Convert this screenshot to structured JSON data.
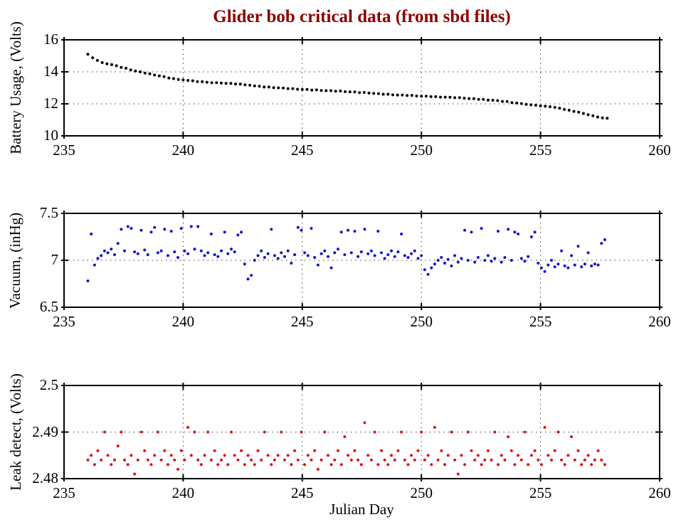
{
  "title": {
    "text": "Glider bob critical data (from sbd files)",
    "color": "#8B0000"
  },
  "xlabel": "Julian Day",
  "background_color": "#FFFFFF",
  "axis_color": "#000000",
  "grid_color": "#3a3a3a",
  "grid_style": "dotted",
  "chart_data": [
    {
      "type": "scatter",
      "name": "battery-usage",
      "ylabel": "Battery Usage, (Volts)",
      "marker_color": "#000000",
      "xlim": [
        235,
        260
      ],
      "ylim": [
        10,
        16
      ],
      "xticks": [
        235,
        240,
        245,
        250,
        255,
        260
      ],
      "xtick_labels": [
        "235",
        "240",
        "245",
        "250",
        "255",
        "260"
      ],
      "yticks": [
        10,
        12,
        14,
        16
      ],
      "ytick_labels": [
        "10",
        "12",
        "14",
        "16"
      ],
      "grid_x": [
        240,
        245,
        250,
        255
      ],
      "grid_y": [
        12,
        14
      ],
      "x_start": 236.0,
      "x_step": 0.2,
      "y": [
        15.1,
        14.88,
        14.71,
        14.58,
        14.5,
        14.45,
        14.38,
        14.28,
        14.22,
        14.12,
        14.05,
        14.0,
        13.92,
        13.88,
        13.8,
        13.75,
        13.7,
        13.62,
        13.58,
        13.52,
        13.5,
        13.46,
        13.44,
        13.39,
        13.38,
        13.35,
        13.32,
        13.32,
        13.3,
        13.28,
        13.28,
        13.24,
        13.23,
        13.19,
        13.16,
        13.12,
        13.1,
        13.05,
        13.05,
        13.01,
        13.0,
        12.99,
        12.95,
        12.95,
        12.91,
        12.9,
        12.9,
        12.86,
        12.87,
        12.83,
        12.82,
        12.82,
        12.79,
        12.8,
        12.76,
        12.75,
        12.74,
        12.7,
        12.71,
        12.67,
        12.65,
        12.64,
        12.6,
        12.6,
        12.56,
        12.55,
        12.55,
        12.52,
        12.53,
        12.49,
        12.48,
        12.48,
        12.45,
        12.45,
        12.42,
        12.42,
        12.41,
        12.38,
        12.39,
        12.35,
        12.33,
        12.32,
        12.28,
        12.28,
        12.23,
        12.22,
        12.2,
        12.15,
        12.14,
        12.08,
        12.05,
        12.02,
        11.97,
        11.94,
        11.91,
        11.87,
        11.85,
        11.82,
        11.78,
        11.73,
        11.65,
        11.6,
        11.53,
        11.48,
        11.4,
        11.32,
        11.26,
        11.18,
        11.12,
        11.1
      ]
    },
    {
      "type": "scatter",
      "name": "vacuum",
      "ylabel": "Vacuum, (inHg)",
      "marker_color": "#1414CC",
      "xlim": [
        235,
        260
      ],
      "ylim": [
        6.5,
        7.5
      ],
      "xticks": [
        235,
        240,
        245,
        250,
        255,
        260
      ],
      "xtick_labels": [
        "235",
        "240",
        "245",
        "250",
        "255",
        "260"
      ],
      "yticks": [
        6.5,
        7,
        7.5
      ],
      "ytick_labels": [
        "6.5",
        "7",
        "7.5"
      ],
      "grid_x": [
        240,
        245,
        250,
        255
      ],
      "grid_y": [
        7
      ],
      "x_start": 236.0,
      "x_step": 0.14,
      "y": [
        6.78,
        7.28,
        6.95,
        7.02,
        7.05,
        7.1,
        7.08,
        7.12,
        7.06,
        7.18,
        7.33,
        7.1,
        7.36,
        7.34,
        7.09,
        7.07,
        7.32,
        7.11,
        7.06,
        7.3,
        7.35,
        7.08,
        7.1,
        7.33,
        7.05,
        7.31,
        7.09,
        7.03,
        7.34,
        7.1,
        7.07,
        7.36,
        7.12,
        7.36,
        7.1,
        7.05,
        7.08,
        7.28,
        7.06,
        7.04,
        7.1,
        7.3,
        7.07,
        7.12,
        7.09,
        7.27,
        7.3,
        6.96,
        6.8,
        6.84,
        7.0,
        7.05,
        7.1,
        7.03,
        7.07,
        7.33,
        7.05,
        7.02,
        7.08,
        7.04,
        7.1,
        6.97,
        7.06,
        7.35,
        7.32,
        7.08,
        7.05,
        7.34,
        7.03,
        6.95,
        7.07,
        7.1,
        7.04,
        6.92,
        7.08,
        7.12,
        7.3,
        7.06,
        7.32,
        7.08,
        7.31,
        7.04,
        7.09,
        7.33,
        7.07,
        7.1,
        7.05,
        7.31,
        7.08,
        7.02,
        7.06,
        7.1,
        7.04,
        7.09,
        7.28,
        7.05,
        7.03,
        7.07,
        7.1,
        7.02,
        7.05,
        6.9,
        6.85,
        6.92,
        6.96,
        7.0,
        7.03,
        6.97,
        7.01,
        6.94,
        7.05,
        6.98,
        7.02,
        7.32,
        7.0,
        7.3,
        6.98,
        7.03,
        7.34,
        7.0,
        7.05,
        6.99,
        7.02,
        7.31,
        6.98,
        7.03,
        7.33,
        7.0,
        7.3,
        7.28,
        7.02,
        6.99,
        7.04,
        7.25,
        7.3,
        6.97,
        6.92,
        6.88,
        6.95,
        7.0,
        6.93,
        6.96,
        7.1,
        6.94,
        6.92,
        7.05,
        6.95,
        7.15,
        6.93,
        6.96,
        7.08,
        6.94,
        6.96,
        6.95,
        7.18,
        7.22
      ]
    },
    {
      "type": "scatter",
      "name": "leak-detect",
      "ylabel": "Leak detect, (Volts)",
      "marker_color": "#DC1414",
      "xlim": [
        235,
        260
      ],
      "ylim": [
        2.48,
        2.5
      ],
      "xticks": [
        235,
        240,
        245,
        250,
        255,
        260
      ],
      "xtick_labels": [
        "235",
        "240",
        "245",
        "250",
        "255",
        "260"
      ],
      "yticks": [
        2.48,
        2.49,
        2.5
      ],
      "ytick_labels": [
        "2.48",
        "2.49",
        "2.5"
      ],
      "grid_x": [
        240,
        245,
        250,
        255
      ],
      "grid_y": [
        2.49
      ],
      "x_start": 236.0,
      "x_step": 0.14,
      "y": [
        2.484,
        2.485,
        2.483,
        2.486,
        2.484,
        2.49,
        2.485,
        2.483,
        2.484,
        2.487,
        2.49,
        2.484,
        2.483,
        2.485,
        2.481,
        2.484,
        2.49,
        2.486,
        2.484,
        2.483,
        2.485,
        2.49,
        2.484,
        2.486,
        2.483,
        2.485,
        2.484,
        2.482,
        2.486,
        2.484,
        2.491,
        2.485,
        2.49,
        2.484,
        2.483,
        2.485,
        2.49,
        2.484,
        2.486,
        2.483,
        2.484,
        2.485,
        2.483,
        2.49,
        2.485,
        2.484,
        2.486,
        2.483,
        2.485,
        2.484,
        2.483,
        2.486,
        2.484,
        2.49,
        2.485,
        2.483,
        2.484,
        2.485,
        2.49,
        2.484,
        2.485,
        2.483,
        2.486,
        2.484,
        2.49,
        2.483,
        2.485,
        2.484,
        2.486,
        2.482,
        2.484,
        2.49,
        2.485,
        2.483,
        2.484,
        2.486,
        2.483,
        2.489,
        2.485,
        2.484,
        2.486,
        2.484,
        2.483,
        2.492,
        2.485,
        2.484,
        2.49,
        2.483,
        2.486,
        2.484,
        2.483,
        2.485,
        2.484,
        2.486,
        2.49,
        2.484,
        2.483,
        2.485,
        2.484,
        2.486,
        2.49,
        2.484,
        2.485,
        2.483,
        2.491,
        2.484,
        2.486,
        2.483,
        2.485,
        2.49,
        2.484,
        2.481,
        2.485,
        2.483,
        2.49,
        2.486,
        2.484,
        2.485,
        2.483,
        2.484,
        2.486,
        2.484,
        2.49,
        2.483,
        2.485,
        2.484,
        2.489,
        2.486,
        2.483,
        2.485,
        2.484,
        2.49,
        2.483,
        2.485,
        2.486,
        2.484,
        2.483,
        2.491,
        2.485,
        2.484,
        2.486,
        2.49,
        2.484,
        2.483,
        2.485,
        2.489,
        2.484,
        2.486,
        2.483,
        2.484,
        2.485,
        2.483,
        2.484,
        2.486,
        2.484,
        2.483
      ]
    }
  ]
}
